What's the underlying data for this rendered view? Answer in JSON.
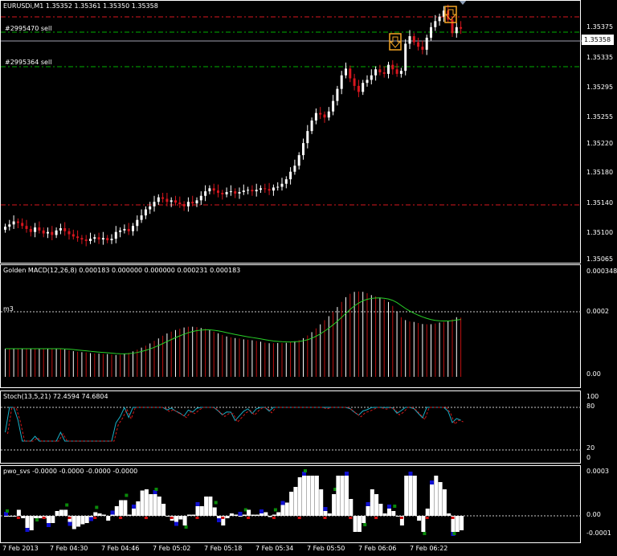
{
  "main_chart": {
    "title": "EURUSDi,M1  1.35352 1.35361 1.35350 1.35358",
    "current_price": "1.35358",
    "price_ticks": [
      "1.35375",
      "1.35335",
      "1.35295",
      "1.35255",
      "1.35220",
      "1.35180",
      "1.35140",
      "1.35100",
      "1.35065"
    ],
    "orders": [
      {
        "label": "#2995470 sell"
      },
      {
        "label": "#2995364 sell"
      }
    ],
    "colors": {
      "bull": "#ffffff",
      "bear": "#d8161e",
      "order_line": "#00b000",
      "stop_line": "#d8161e",
      "arrow": "#f5a623"
    },
    "arrows": [
      "down-arrow-icon",
      "down-arrow-icon"
    ]
  },
  "macd_panel": {
    "title": "Golden MACD(12,26,8) 0.000183 0.000000 0.000000 0.000231 0.000183",
    "level_label": "m3",
    "ticks": [
      "0.000348",
      "0.0002",
      "0.00"
    ]
  },
  "stoch_panel": {
    "title": "Stoch(13,5,21) 72.4594 74.6804",
    "ticks": [
      "100",
      "80",
      "20",
      "0"
    ]
  },
  "pwo_panel": {
    "title": "pwo_svs -0.0000 -0.0000 -0.0000 -0.0000",
    "ticks": [
      "0.0003",
      "0.00",
      "-0.0001"
    ]
  },
  "time_axis": {
    "labels": [
      "7 Feb 2013",
      "7 Feb 04:30",
      "7 Feb 04:46",
      "7 Feb 05:02",
      "7 Feb 05:18",
      "7 Feb 05:34",
      "7 Feb 05:50",
      "7 Feb 06:06",
      "7 Feb 06:22"
    ]
  },
  "chart_data": {
    "type": "candlestick",
    "symbol": "EURUSDi",
    "timeframe": "M1",
    "ylim": [
      1.35045,
      1.35395
    ],
    "candles_close": [
      1.35095,
      1.35098,
      1.35102,
      1.351,
      1.35096,
      1.35092,
      1.35088,
      1.35094,
      1.3509,
      1.35086,
      1.35088,
      1.35084,
      1.3509,
      1.35093,
      1.35089,
      1.35085,
      1.35082,
      1.3508,
      1.35078,
      1.35076,
      1.35079,
      1.35081,
      1.35078,
      1.3508,
      1.35077,
      1.35079,
      1.35088,
      1.3509,
      1.35092,
      1.35089,
      1.35096,
      1.35104,
      1.3511,
      1.35118,
      1.35122,
      1.35128,
      1.35134,
      1.35132,
      1.35128,
      1.3513,
      1.35127,
      1.35125,
      1.35122,
      1.35128,
      1.35126,
      1.3513,
      1.35136,
      1.35142,
      1.35146,
      1.35143,
      1.3514,
      1.35138,
      1.35141,
      1.35142,
      1.35139,
      1.35141,
      1.35143,
      1.35144,
      1.35142,
      1.35144,
      1.35146,
      1.35145,
      1.35143,
      1.35147,
      1.35148,
      1.35152,
      1.35158,
      1.35168,
      1.35176,
      1.3519,
      1.35206,
      1.35222,
      1.35236,
      1.35246,
      1.35244,
      1.3524,
      1.35248,
      1.35262,
      1.35278,
      1.35296,
      1.35305,
      1.35292,
      1.35282,
      1.35274,
      1.35286,
      1.3529,
      1.35296,
      1.35304,
      1.353,
      1.35298,
      1.3531,
      1.35304,
      1.35298,
      1.35302,
      1.35338,
      1.35348,
      1.3534,
      1.35334,
      1.3533,
      1.35346,
      1.3536,
      1.35368,
      1.35374,
      1.35382,
      1.3537,
      1.35352,
      1.3536,
      1.35358
    ]
  }
}
